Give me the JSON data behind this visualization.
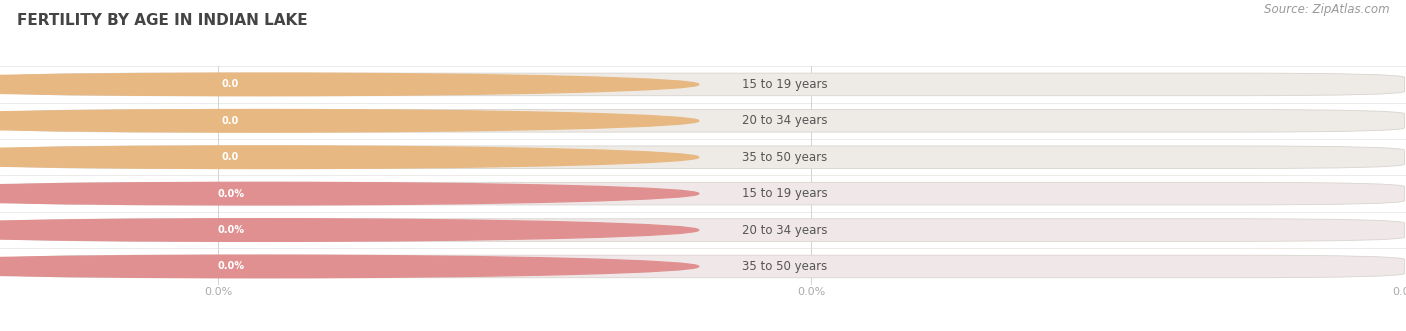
{
  "title": "FERTILITY BY AGE IN INDIAN LAKE",
  "source_text": "Source: ZipAtlas.com",
  "top_section": {
    "categories": [
      "15 to 19 years",
      "20 to 34 years",
      "35 to 50 years"
    ],
    "values": [
      0.0,
      0.0,
      0.0
    ],
    "bar_bg_color": "#eeebe6",
    "bar_fill_color": "#e8b882",
    "value_tag_color": "#e8b882",
    "value_text_color": "#ffffff",
    "value_labels": [
      "0.0",
      "0.0",
      "0.0"
    ],
    "tick_labels": [
      "0.0",
      "0.0",
      "0.0"
    ],
    "x_ticks": [
      0.0,
      0.5,
      1.0
    ]
  },
  "bottom_section": {
    "categories": [
      "15 to 19 years",
      "20 to 34 years",
      "35 to 50 years"
    ],
    "values": [
      0.0,
      0.0,
      0.0
    ],
    "bar_bg_color": "#f0e8e8",
    "bar_fill_color": "#e09090",
    "value_tag_color": "#e09090",
    "value_text_color": "#ffffff",
    "value_labels": [
      "0.0%",
      "0.0%",
      "0.0%"
    ],
    "tick_labels": [
      "0.0%",
      "0.0%",
      "0.0%"
    ],
    "x_ticks": [
      0.0,
      0.5,
      1.0
    ]
  },
  "bg_color": "#ffffff",
  "bar_line_color": "#d8d4cf",
  "bar_height": 0.62,
  "title_fontsize": 11,
  "label_fontsize": 8.5,
  "tick_fontsize": 8,
  "source_fontsize": 8.5,
  "cat_text_color": "#555555",
  "tick_color": "#aaaaaa",
  "grid_color": "#cccccc"
}
